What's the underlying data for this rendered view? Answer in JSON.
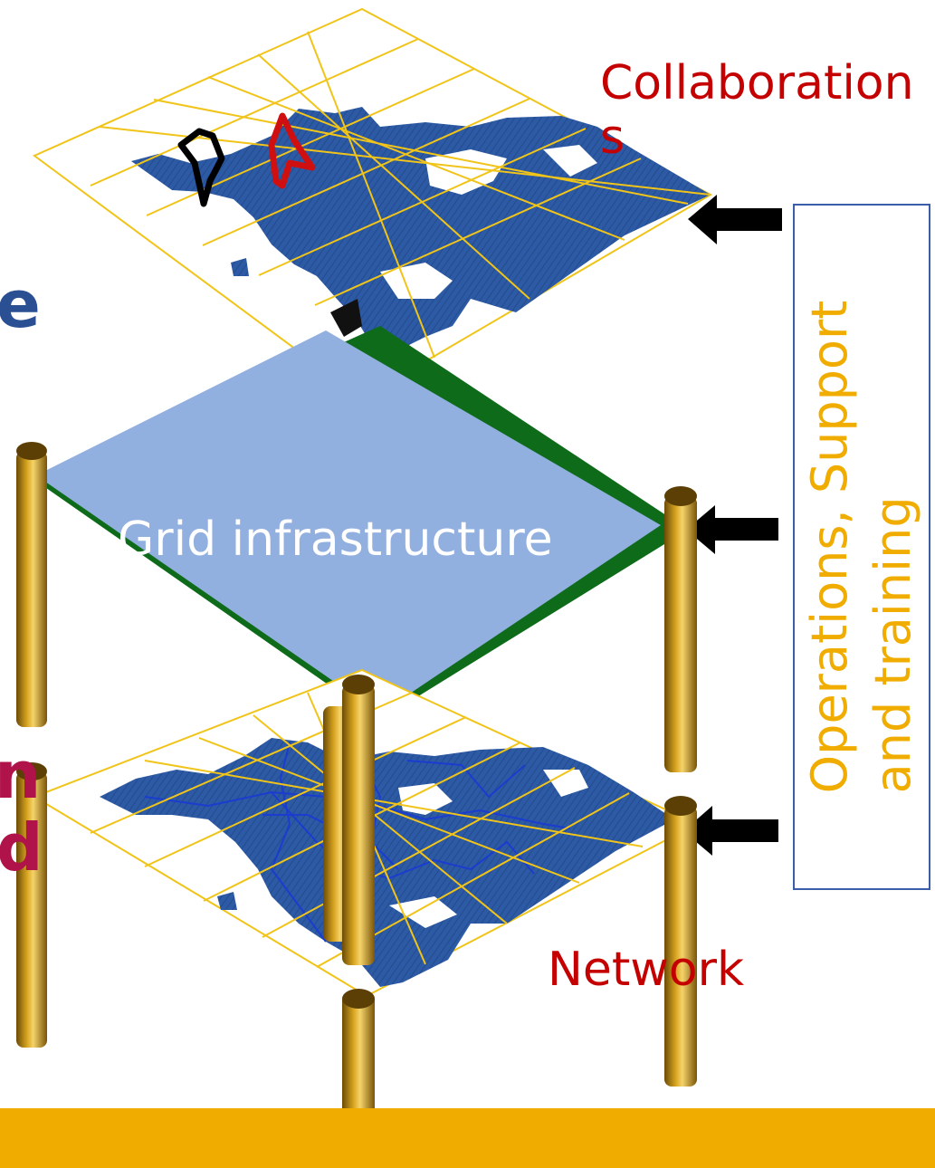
{
  "layers": {
    "collaborations": "Collaborations",
    "grid": "Grid infrastructure",
    "network": "Network"
  },
  "side_box": {
    "line1": "Operations,  Support",
    "line2": "and training"
  },
  "clipped_left_edge": {
    "top": "e",
    "middle_a": "n",
    "middle_b": "d"
  },
  "colors": {
    "map_blue": "#2e5aa6",
    "grid_lines": "#f0c419",
    "grid_plane": "#91afdf",
    "label_red": "#c40000",
    "side_text": "#f0ad00",
    "footer": "#f0ad00",
    "pillar": "#b8860b",
    "arrow": "#000000"
  },
  "icons": [
    "arrow-left-icon",
    "pillar-icon",
    "map-layer-icon"
  ]
}
